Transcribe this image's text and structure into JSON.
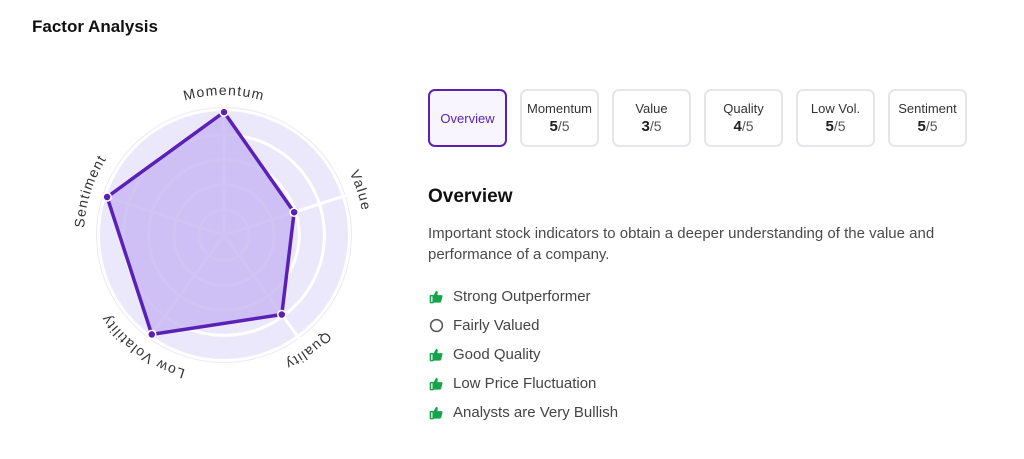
{
  "header": {
    "title": "Factor Analysis"
  },
  "radar": {
    "axes": [
      "Momentum",
      "Value",
      "Quality",
      "Low Volatility",
      "Sentiment"
    ],
    "scores": [
      5,
      3,
      4,
      5,
      5
    ],
    "max_score": 5,
    "colors": {
      "fill": "#c9b8f2",
      "stroke": "#5b21b6",
      "background": "#ece8fb",
      "grid": "#ffffff"
    }
  },
  "tabs": [
    {
      "name": "Overview",
      "score": "",
      "denominator": "",
      "active": true
    },
    {
      "name": "Momentum",
      "score": "5",
      "denominator": "/5",
      "active": false
    },
    {
      "name": "Value",
      "score": "3",
      "denominator": "/5",
      "active": false
    },
    {
      "name": "Quality",
      "score": "4",
      "denominator": "/5",
      "active": false
    },
    {
      "name": "Low Vol.",
      "score": "5",
      "denominator": "/5",
      "active": false
    },
    {
      "name": "Sentiment",
      "score": "5",
      "denominator": "/5",
      "active": false
    }
  ],
  "overview": {
    "title": "Overview",
    "description": "Important stock indicators to obtain a deeper understanding of the value and performance of a company.",
    "factors": [
      {
        "label": "Strong Outperformer",
        "icon": "thumbs-up-icon"
      },
      {
        "label": "Fairly Valued",
        "icon": "neutral-circle-icon"
      },
      {
        "label": "Good Quality",
        "icon": "thumbs-up-icon"
      },
      {
        "label": "Low Price Fluctuation",
        "icon": "thumbs-up-icon"
      },
      {
        "label": "Analysts are Very Bullish",
        "icon": "thumbs-up-icon"
      }
    ],
    "positive_color": "#16a34a",
    "neutral_color": "#555555"
  }
}
